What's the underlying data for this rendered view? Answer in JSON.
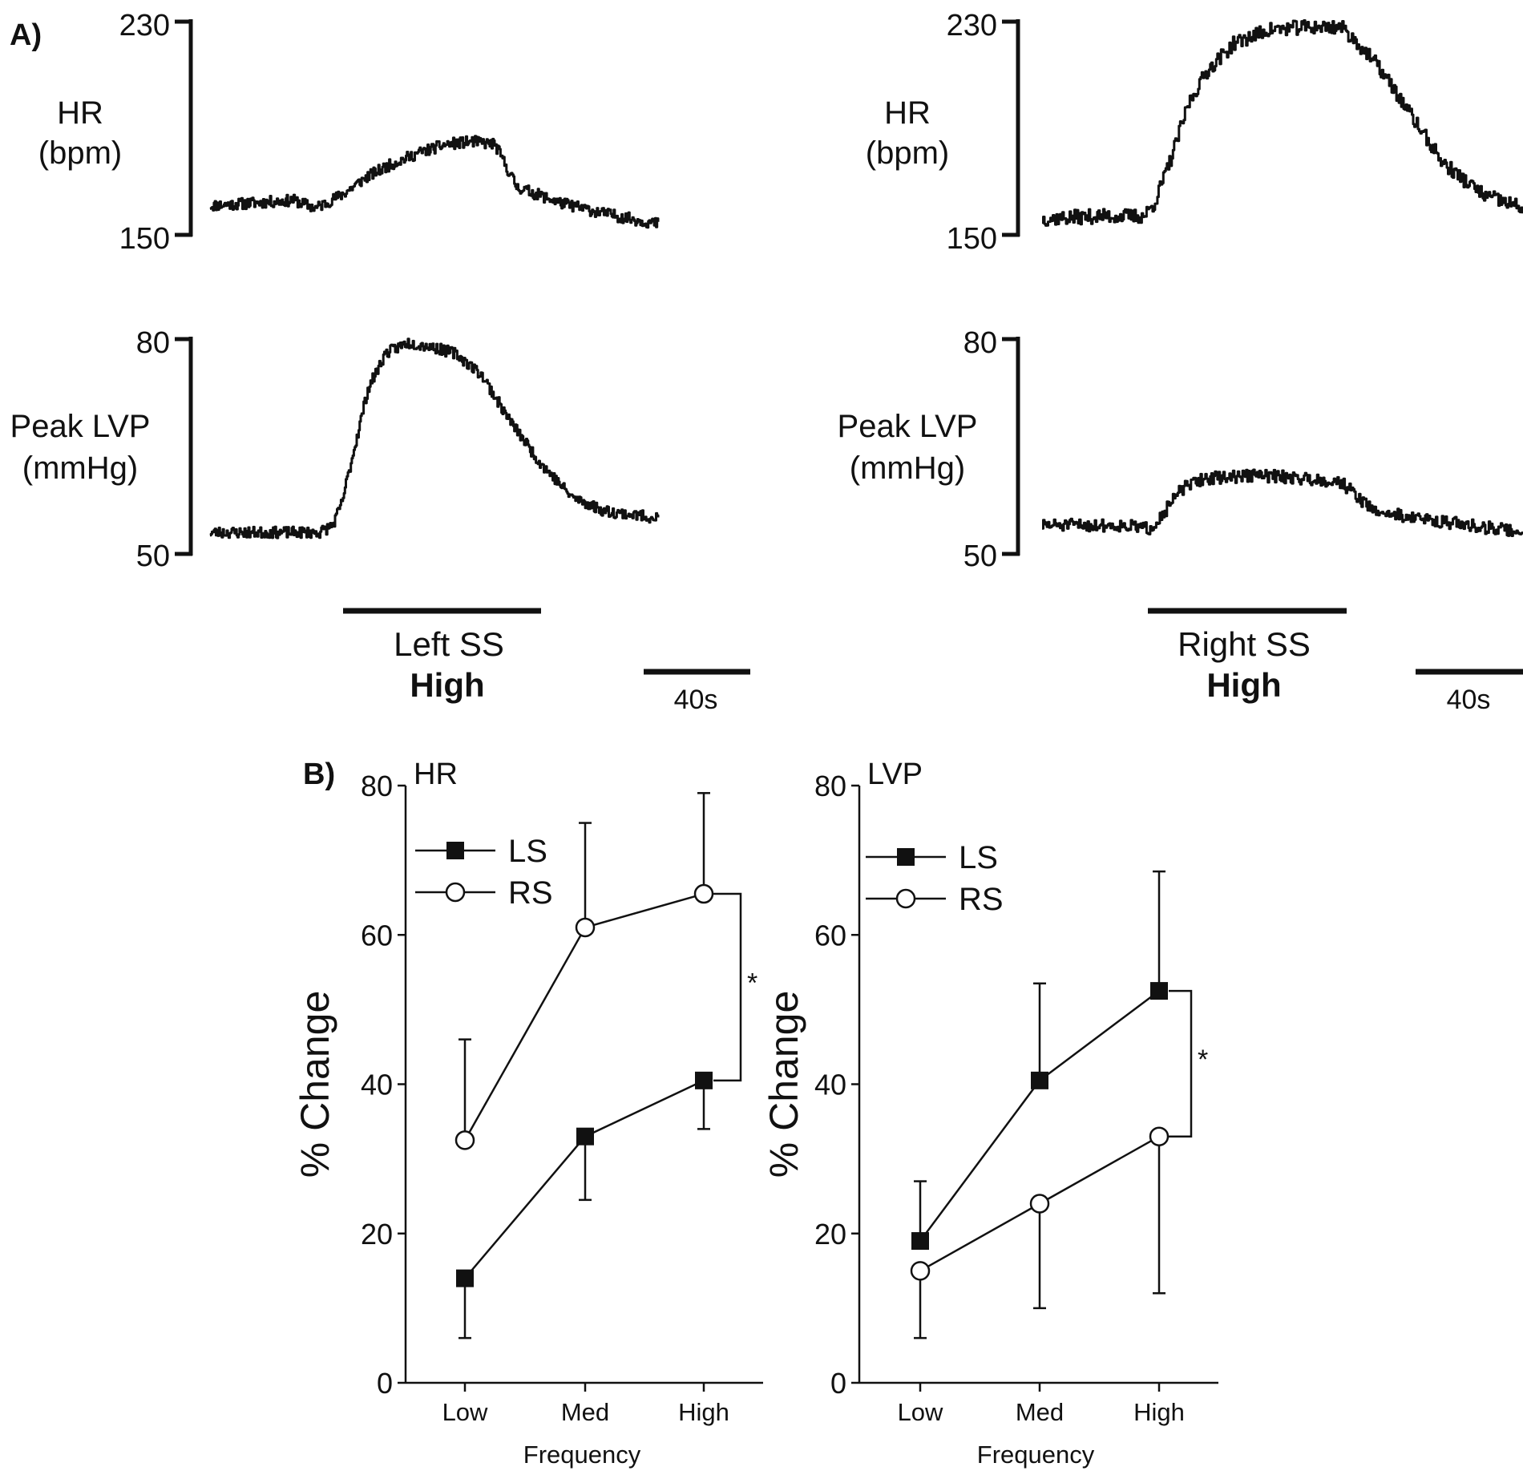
{
  "panel_a_label": "A)",
  "panel_b_label": "B)",
  "traces": [
    {
      "key": "left",
      "hr_label_line1": "HR",
      "hr_label_line2": "(bpm)",
      "hr_top": "230",
      "hr_bottom": "150",
      "lvp_label_line1": "Peak LVP",
      "lvp_label_line2": "(mmHg)",
      "lvp_top": "80",
      "lvp_bottom": "50",
      "stim_label": "Left SS",
      "stim_level": "High",
      "scale_label": "40s"
    },
    {
      "key": "right",
      "hr_label_line1": "HR",
      "hr_label_line2": "(bpm)",
      "hr_top": "230",
      "hr_bottom": "150",
      "lvp_label_line1": "Peak LVP",
      "lvp_label_line2": "(mmHg)",
      "lvp_top": "80",
      "lvp_bottom": "50",
      "stim_label": "Right SS",
      "stim_level": "High",
      "scale_label": "40s"
    }
  ],
  "colors": {
    "ink": "#111111",
    "background": "#ffffff",
    "open_marker_fill": "#ffffff"
  },
  "chart_data": [
    {
      "type": "line",
      "panel": "A-left-HR",
      "title": "",
      "ylabel": "HR (bpm)",
      "ylim": [
        150,
        230
      ],
      "time_s": [
        0,
        20,
        38,
        48,
        60,
        72,
        84,
        96,
        108,
        120,
        130,
        140,
        160,
        180,
        205
      ],
      "values": [
        161,
        162,
        163,
        160,
        165,
        172,
        177,
        181,
        184,
        185,
        184,
        168,
        162,
        158,
        154
      ],
      "stimulus_window_s": [
        52,
        126
      ],
      "scale_bar_s": 40
    },
    {
      "type": "line",
      "panel": "A-left-LVP",
      "ylabel": "Peak LVP (mmHg)",
      "ylim": [
        50,
        80
      ],
      "time_s": [
        0,
        30,
        50,
        56,
        60,
        66,
        72,
        80,
        90,
        100,
        112,
        124,
        136,
        150,
        165,
        180,
        205
      ],
      "values": [
        53,
        53,
        53,
        54,
        57,
        65,
        73,
        78,
        79.5,
        79,
        78,
        75,
        69,
        63,
        58,
        56,
        55
      ]
    },
    {
      "type": "line",
      "panel": "A-right-HR",
      "ylabel": "HR (bpm)",
      "ylim": [
        150,
        230
      ],
      "time_s": [
        0,
        20,
        38,
        42,
        48,
        55,
        62,
        72,
        85,
        100,
        112,
        118,
        126,
        138,
        150,
        165,
        180
      ],
      "values": [
        156,
        157,
        157,
        162,
        178,
        200,
        212,
        222,
        227,
        228,
        228,
        222,
        213,
        195,
        177,
        165,
        160
      ]
    },
    {
      "type": "line",
      "panel": "A-right-LVP",
      "ylabel": "Peak LVP (mmHg)",
      "ylim": [
        50,
        80
      ],
      "time_s": [
        0,
        30,
        40,
        46,
        52,
        60,
        80,
        100,
        112,
        118,
        124,
        140,
        160,
        180
      ],
      "values": [
        54,
        54,
        53.5,
        56,
        59,
        60.5,
        61,
        60.5,
        60,
        58,
        56,
        55,
        54,
        53
      ],
      "stimulus_window_s": [
        40,
        112
      ],
      "scale_bar_s": 40
    },
    {
      "type": "line",
      "panel": "B-HR",
      "title": "HR",
      "categories": [
        "Low",
        "Med",
        "High"
      ],
      "xlabel": "Frequency",
      "ylabel": "% Change",
      "ylim": [
        0,
        80
      ],
      "yticks": [
        "0",
        "20",
        "40",
        "60",
        "80"
      ],
      "series": [
        {
          "name": "LS",
          "marker": "filled-square",
          "values": [
            14,
            33,
            40.5
          ],
          "err_low": [
            8,
            8.5,
            6.5
          ],
          "err_high": [
            0,
            0,
            0
          ]
        },
        {
          "name": "RS",
          "marker": "open-circle",
          "values": [
            32.5,
            61,
            65.5
          ],
          "err_low": [
            0,
            0,
            0
          ],
          "err_high": [
            13.5,
            14,
            13.5
          ]
        }
      ],
      "significance": {
        "category": "High",
        "label": "*"
      }
    },
    {
      "type": "line",
      "panel": "B-LVP",
      "title": "LVP",
      "categories": [
        "Low",
        "Med",
        "High"
      ],
      "xlabel": "Frequency",
      "ylabel": "% Change",
      "ylim": [
        0,
        80
      ],
      "yticks": [
        "0",
        "20",
        "40",
        "60",
        "80"
      ],
      "series": [
        {
          "name": "LS",
          "marker": "filled-square",
          "values": [
            19,
            40.5,
            52.5
          ],
          "err_low": [
            0,
            0,
            0
          ],
          "err_high": [
            8,
            13,
            16
          ]
        },
        {
          "name": "RS",
          "marker": "open-circle",
          "values": [
            15,
            24,
            33
          ],
          "err_low": [
            9,
            14,
            21
          ],
          "err_high": [
            0,
            0,
            0
          ]
        }
      ],
      "significance": {
        "category": "High",
        "label": "*"
      }
    }
  ]
}
